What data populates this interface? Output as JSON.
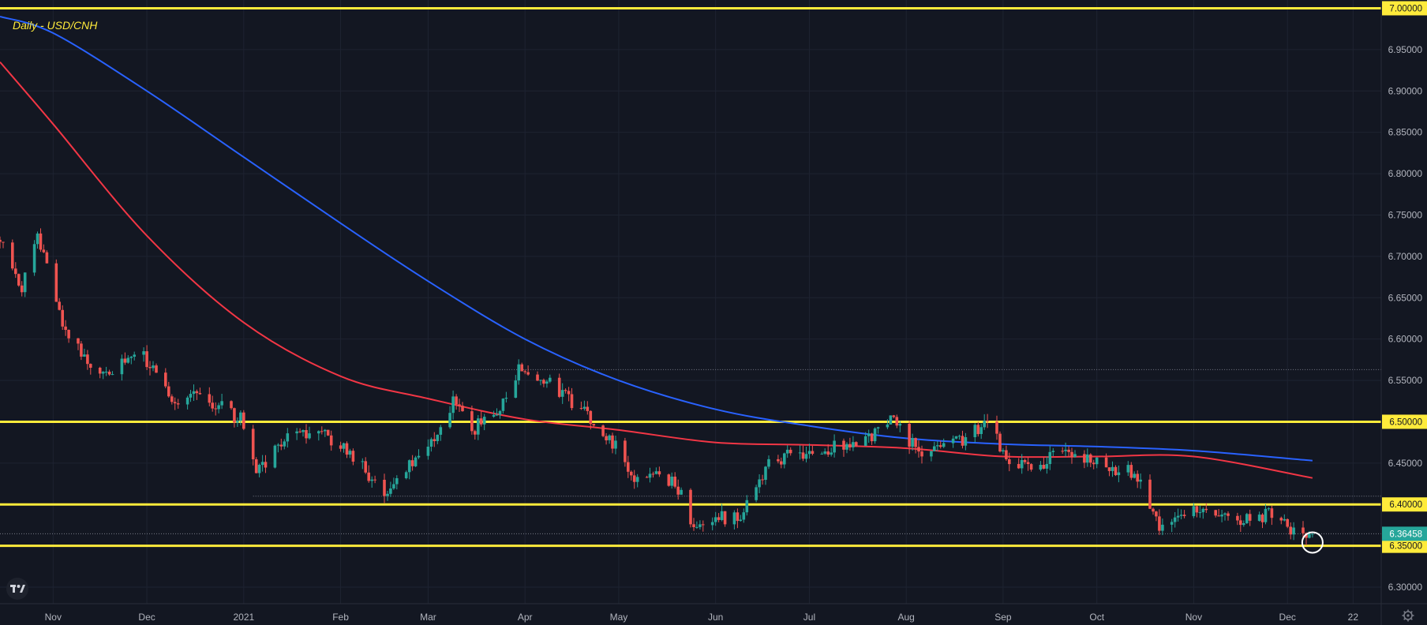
{
  "chart_data": {
    "type": "candlestick",
    "title": "Daily - USD/CNH",
    "ylim": [
      6.28,
      7.01
    ],
    "y_ticks": [
      "6.95000",
      "6.90000",
      "6.85000",
      "6.80000",
      "6.75000",
      "6.70000",
      "6.65000",
      "6.60000",
      "6.55000",
      "6.50000",
      "6.45000",
      "6.30000"
    ],
    "x_ticks": [
      "Nov",
      "Dec",
      "2021",
      "Feb",
      "Mar",
      "Apr",
      "May",
      "Jun",
      "Jul",
      "Aug",
      "Sep",
      "Oct",
      "Nov",
      "Dec",
      "22"
    ],
    "x_range": [
      "2020-10-15",
      "2021-12-31"
    ],
    "horizontal_levels": [
      {
        "label": "7.00000",
        "value": 7.0,
        "color": "#ffeb3b"
      },
      {
        "label": "6.50000",
        "value": 6.5,
        "color": "#ffeb3b"
      },
      {
        "label": "6.40000",
        "value": 6.4,
        "color": "#ffeb3b"
      },
      {
        "label": "6.35000",
        "value": 6.35,
        "color": "#ffeb3b"
      }
    ],
    "last_price": {
      "label": "6.36458",
      "value": 6.36458,
      "color": "#26a69a"
    },
    "dotted_levels": [
      {
        "value": 6.563,
        "from": "2021-03-08"
      },
      {
        "value": 6.41,
        "from": "2021-01-04"
      }
    ],
    "moving_averages": [
      {
        "color": "#2962ff",
        "points": [
          [
            "2020-10-15",
            6.99
          ],
          [
            "2020-11-01",
            6.97
          ],
          [
            "2020-12-01",
            6.9
          ],
          [
            "2021-01-01",
            6.82
          ],
          [
            "2021-02-01",
            6.74
          ],
          [
            "2021-03-01",
            6.67
          ],
          [
            "2021-04-01",
            6.6
          ],
          [
            "2021-05-01",
            6.55
          ],
          [
            "2021-06-01",
            6.515
          ],
          [
            "2021-07-01",
            6.495
          ],
          [
            "2021-08-01",
            6.48
          ],
          [
            "2021-09-01",
            6.473
          ],
          [
            "2021-10-01",
            6.47
          ],
          [
            "2021-11-01",
            6.465
          ],
          [
            "2021-12-09",
            6.453
          ]
        ]
      },
      {
        "color": "#f23645",
        "points": [
          [
            "2020-10-15",
            6.935
          ],
          [
            "2020-11-01",
            6.86
          ],
          [
            "2020-12-01",
            6.725
          ],
          [
            "2021-01-01",
            6.62
          ],
          [
            "2021-02-01",
            6.555
          ],
          [
            "2021-03-01",
            6.528
          ],
          [
            "2021-04-01",
            6.503
          ],
          [
            "2021-05-01",
            6.49
          ],
          [
            "2021-06-01",
            6.475
          ],
          [
            "2021-07-01",
            6.472
          ],
          [
            "2021-08-01",
            6.468
          ],
          [
            "2021-09-01",
            6.458
          ],
          [
            "2021-10-01",
            6.458
          ],
          [
            "2021-11-01",
            6.458
          ],
          [
            "2021-12-09",
            6.432
          ]
        ]
      }
    ],
    "price_path": [
      [
        "2020-10-15",
        6.72
      ],
      [
        "2020-10-22",
        6.66
      ],
      [
        "2020-10-27",
        6.72
      ],
      [
        "2020-10-30",
        6.7
      ],
      [
        "2020-11-03",
        6.63
      ],
      [
        "2020-11-10",
        6.58
      ],
      [
        "2020-11-18",
        6.56
      ],
      [
        "2020-11-30",
        6.58
      ],
      [
        "2020-12-08",
        6.53
      ],
      [
        "2020-12-20",
        6.53
      ],
      [
        "2021-01-01",
        6.5
      ],
      [
        "2021-01-05",
        6.44
      ],
      [
        "2021-01-15",
        6.48
      ],
      [
        "2021-01-25",
        6.49
      ],
      [
        "2021-02-05",
        6.46
      ],
      [
        "2021-02-15",
        6.41
      ],
      [
        "2021-02-25",
        6.46
      ],
      [
        "2021-03-05",
        6.49
      ],
      [
        "2021-03-10",
        6.53
      ],
      [
        "2021-03-15",
        6.49
      ],
      [
        "2021-03-25",
        6.52
      ],
      [
        "2021-03-31",
        6.57
      ],
      [
        "2021-04-08",
        6.55
      ],
      [
        "2021-04-20",
        6.51
      ],
      [
        "2021-04-30",
        6.47
      ],
      [
        "2021-05-06",
        6.43
      ],
      [
        "2021-05-14",
        6.44
      ],
      [
        "2021-05-20",
        6.42
      ],
      [
        "2021-05-25",
        6.37
      ],
      [
        "2021-05-31",
        6.38
      ],
      [
        "2021-06-10",
        6.39
      ],
      [
        "2021-06-18",
        6.45
      ],
      [
        "2021-06-25",
        6.46
      ],
      [
        "2021-07-10",
        6.47
      ],
      [
        "2021-07-25",
        6.49
      ],
      [
        "2021-07-28",
        6.51
      ],
      [
        "2021-08-05",
        6.46
      ],
      [
        "2021-08-20",
        6.48
      ],
      [
        "2021-08-26",
        6.5
      ],
      [
        "2021-09-02",
        6.46
      ],
      [
        "2021-09-10",
        6.44
      ],
      [
        "2021-09-20",
        6.47
      ],
      [
        "2021-09-25",
        6.46
      ],
      [
        "2021-10-05",
        6.44
      ],
      [
        "2021-10-10",
        6.45
      ],
      [
        "2021-10-14",
        6.43
      ],
      [
        "2021-10-18",
        6.4
      ],
      [
        "2021-10-21",
        6.37
      ],
      [
        "2021-11-01",
        6.39
      ],
      [
        "2021-11-10",
        6.39
      ],
      [
        "2021-11-18",
        6.38
      ],
      [
        "2021-11-25",
        6.39
      ],
      [
        "2021-12-01",
        6.37
      ],
      [
        "2021-12-05",
        6.36
      ],
      [
        "2021-12-09",
        6.36458
      ]
    ],
    "marker_circle": {
      "date": "2021-12-09",
      "value": 6.354
    }
  }
}
